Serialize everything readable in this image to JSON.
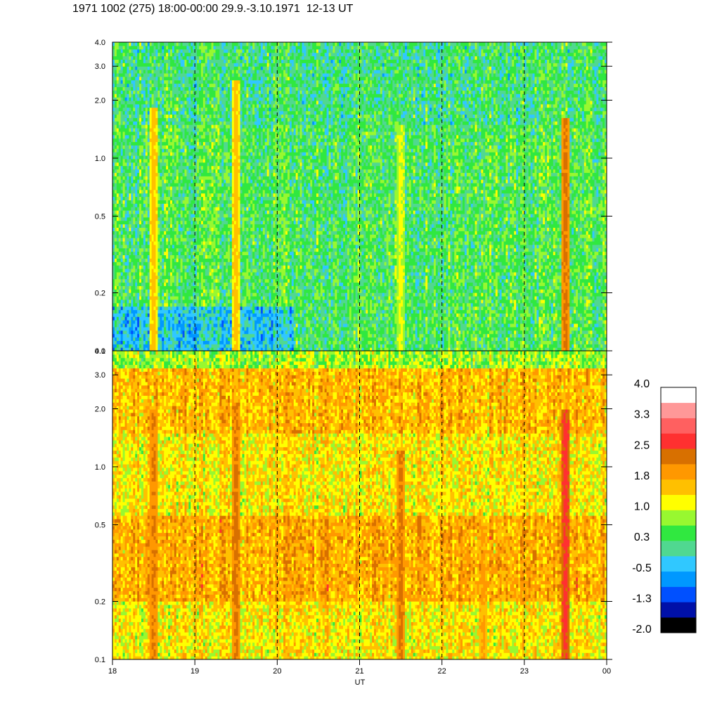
{
  "chart_data": {
    "type": "heatmap",
    "title": "1971 1002 (275) 18:00-00:00 29.9.-3.10.1971  12-13 UT",
    "xlabel": "UT",
    "x_ticks": [
      "18",
      "19",
      "20",
      "21",
      "22",
      "23",
      "00"
    ],
    "x_range": [
      18,
      24
    ],
    "dashed_hours": [
      19,
      20,
      21,
      22,
      23
    ],
    "panels": [
      {
        "name": "upper",
        "y_scale": "log",
        "y_range": [
          0.1,
          4.0
        ],
        "y_ticks": [
          "0.1",
          "0.2",
          "0.5",
          "1.0",
          "2.0",
          "3.0",
          "4.0"
        ],
        "y_tick_values": [
          0.1,
          0.2,
          0.5,
          1.0,
          2.0,
          3.0,
          4.0
        ],
        "background_level": 0.4,
        "features": [
          {
            "x": 18.5,
            "level": 1.6,
            "fmax": 1.8
          },
          {
            "x": 19.5,
            "level": 1.6,
            "fmax": 2.5
          },
          {
            "x": 21.5,
            "level": 1.2,
            "fmax": 1.5
          },
          {
            "x": 23.5,
            "level": 2.3,
            "fmax": 1.6
          }
        ]
      },
      {
        "name": "lower",
        "y_scale": "log",
        "y_range": [
          0.1,
          4.0
        ],
        "y_ticks": [
          "0.1",
          "0.2",
          "0.5",
          "1.0",
          "2.0",
          "3.0",
          "4.0"
        ],
        "y_tick_values": [
          0.1,
          0.2,
          0.5,
          1.0,
          2.0,
          3.0,
          4.0
        ],
        "background_level": 1.3,
        "features": [
          {
            "x": 18.5,
            "level": 2.2,
            "fmax": 2.0
          },
          {
            "x": 19.5,
            "level": 2.3,
            "fmax": 2.2
          },
          {
            "x": 21.5,
            "level": 2.3,
            "fmax": 1.2
          },
          {
            "x": 22.5,
            "level": 1.9,
            "fmax": 0.5
          },
          {
            "x": 23.5,
            "level": 2.7,
            "fmax": 2.0
          }
        ]
      }
    ],
    "colorbar": {
      "labels": [
        "4.0",
        "3.3",
        "2.5",
        "1.8",
        "1.0",
        "0.3",
        "-0.5",
        "-1.3",
        "-2.0"
      ],
      "range": [
        -2.0,
        4.0
      ],
      "colors": [
        "#000000",
        "#0010a8",
        "#0050ff",
        "#0098ff",
        "#30c8ff",
        "#50d890",
        "#30e840",
        "#98f830",
        "#ffff00",
        "#ffc000",
        "#ff9800",
        "#d87000",
        "#ff3030",
        "#ff6060",
        "#ff9898",
        "#ffffff"
      ]
    }
  }
}
